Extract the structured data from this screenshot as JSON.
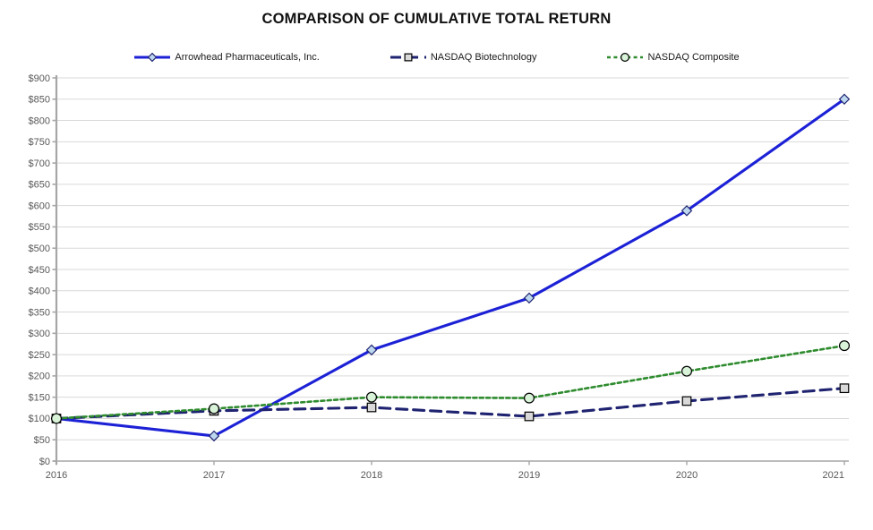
{
  "title": "COMPARISON OF CUMULATIVE TOTAL RETURN",
  "chart_data": {
    "type": "line",
    "title": "COMPARISON OF CUMULATIVE TOTAL RETURN",
    "x_labels": [
      "2016",
      "2017",
      "2018",
      "2019",
      "2020",
      "2021"
    ],
    "ylim": [
      0,
      900
    ],
    "ytick_step": 50,
    "ytick_labels": [
      "$0",
      "$50",
      "$100",
      "$150",
      "$200",
      "$250",
      "$300",
      "$350",
      "$400",
      "$450",
      "$500",
      "$550",
      "$600",
      "$650",
      "$700",
      "$750",
      "$800",
      "$850",
      "$900"
    ],
    "grid": true,
    "legend_position": "top-center",
    "series": [
      {
        "name": "Arrowhead Pharmaceuticals, Inc.",
        "values": [
          100,
          59,
          261,
          383,
          588,
          850
        ],
        "color": "#1c21d6",
        "line_style": "solid",
        "marker": "diamond",
        "marker_fill": "#bdd7ee",
        "marker_stroke": "#1f2370"
      },
      {
        "name": "NASDAQ Biotechnology",
        "values": [
          100,
          118,
          126,
          105,
          141,
          171
        ],
        "color": "#1f2370",
        "line_style": "dashed",
        "marker": "square",
        "marker_fill": "#d9d9d9",
        "marker_stroke": "#000000"
      },
      {
        "name": "NASDAQ Composite",
        "values": [
          100,
          123,
          150,
          148,
          211,
          271
        ],
        "color": "#2e8b2e",
        "line_style": "dotted",
        "marker": "circle",
        "marker_fill": "#d8f3d8",
        "marker_stroke": "#000000"
      }
    ],
    "axis_color": "#a6a6a6",
    "grid_color": "#d9d9d9",
    "tick_label_color": "#595959"
  }
}
